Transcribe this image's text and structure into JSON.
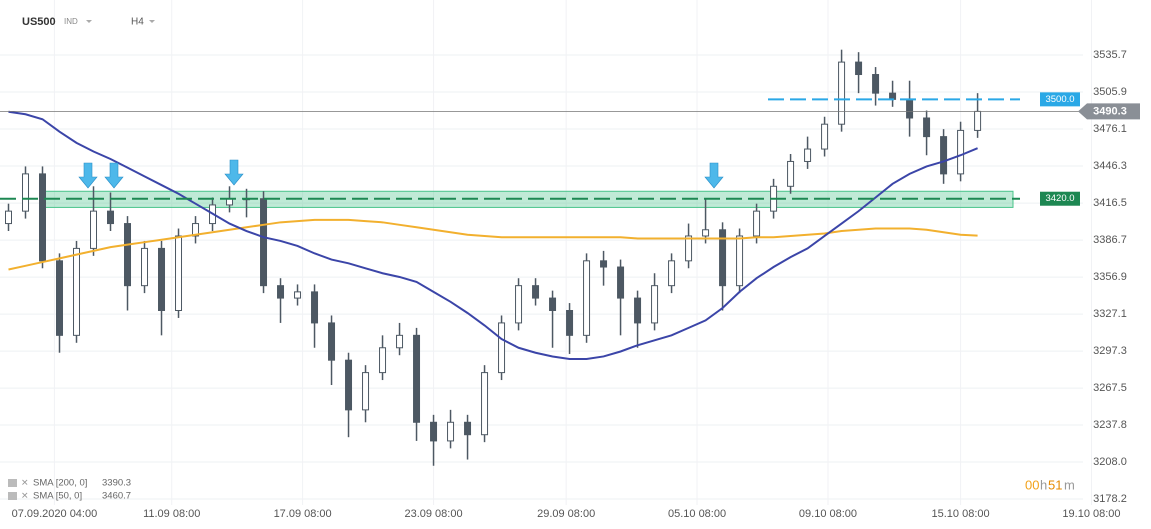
{
  "header": {
    "symbol": "US500",
    "market": "IND",
    "timeframe": "H4"
  },
  "chart_data": {
    "type": "candlestick",
    "candles": [
      [
        3400,
        3416,
        3394,
        3410
      ],
      [
        3410,
        3446,
        3404,
        3440
      ],
      [
        3440,
        3446,
        3364,
        3370
      ],
      [
        3370,
        3376,
        3296,
        3310
      ],
      [
        3310,
        3386,
        3304,
        3380
      ],
      [
        3380,
        3430,
        3374,
        3410
      ],
      [
        3410,
        3425,
        3394,
        3400
      ],
      [
        3400,
        3406,
        3330,
        3350
      ],
      [
        3350,
        3386,
        3344,
        3380
      ],
      [
        3380,
        3386,
        3310,
        3330
      ],
      [
        3330,
        3396,
        3324,
        3390
      ],
      [
        3390,
        3406,
        3384,
        3400
      ],
      [
        3400,
        3421,
        3394,
        3415
      ],
      [
        3415,
        3430,
        3409,
        3420
      ],
      [
        3420,
        3428,
        3405,
        3420
      ],
      [
        3420,
        3426,
        3344,
        3350
      ],
      [
        3350,
        3356,
        3320,
        3340
      ],
      [
        3340,
        3351,
        3334,
        3345
      ],
      [
        3345,
        3351,
        3300,
        3320
      ],
      [
        3320,
        3326,
        3270,
        3290
      ],
      [
        3290,
        3296,
        3228,
        3250
      ],
      [
        3250,
        3286,
        3240,
        3280
      ],
      [
        3280,
        3310,
        3274,
        3300
      ],
      [
        3300,
        3320,
        3294,
        3310
      ],
      [
        3310,
        3316,
        3225,
        3240
      ],
      [
        3240,
        3246,
        3205,
        3225
      ],
      [
        3225,
        3250,
        3219,
        3240
      ],
      [
        3240,
        3246,
        3210,
        3230
      ],
      [
        3230,
        3286,
        3224,
        3280
      ],
      [
        3280,
        3326,
        3274,
        3320
      ],
      [
        3320,
        3356,
        3314,
        3350
      ],
      [
        3350,
        3356,
        3334,
        3340
      ],
      [
        3340,
        3346,
        3300,
        3330
      ],
      [
        3330,
        3336,
        3295,
        3310
      ],
      [
        3310,
        3376,
        3304,
        3370
      ],
      [
        3370,
        3378,
        3350,
        3365
      ],
      [
        3365,
        3371,
        3310,
        3340
      ],
      [
        3340,
        3346,
        3300,
        3320
      ],
      [
        3320,
        3360,
        3314,
        3350
      ],
      [
        3350,
        3376,
        3344,
        3370
      ],
      [
        3370,
        3400,
        3364,
        3390
      ],
      [
        3390,
        3420,
        3384,
        3395
      ],
      [
        3395,
        3401,
        3330,
        3350
      ],
      [
        3350,
        3396,
        3344,
        3390
      ],
      [
        3390,
        3416,
        3384,
        3410
      ],
      [
        3410,
        3436,
        3404,
        3430
      ],
      [
        3430,
        3456,
        3424,
        3450
      ],
      [
        3450,
        3470,
        3444,
        3460
      ],
      [
        3460,
        3486,
        3454,
        3480
      ],
      [
        3480,
        3540,
        3474,
        3530
      ],
      [
        3530,
        3538,
        3505,
        3520
      ],
      [
        3520,
        3526,
        3495,
        3505
      ],
      [
        3505,
        3515,
        3494,
        3500
      ],
      [
        3500,
        3515,
        3470,
        3485
      ],
      [
        3485,
        3491,
        3455,
        3470
      ],
      [
        3470,
        3476,
        3432,
        3440
      ],
      [
        3440,
        3482,
        3434,
        3475
      ],
      [
        3475,
        3505,
        3469,
        3490.3
      ]
    ],
    "bull_color": "#ffffff",
    "bear_color": "#4d5863",
    "series": [
      {
        "name": "SMA [200, 0]",
        "color": "#f2b02e",
        "values": [
          3363,
          3366,
          3369,
          3372,
          3375,
          3378,
          3381,
          3383,
          3385,
          3387,
          3389,
          3391,
          3393,
          3395,
          3397,
          3399,
          3401,
          3402,
          3403,
          3403,
          3403,
          3402,
          3401,
          3399,
          3397,
          3395,
          3393,
          3391,
          3390,
          3389,
          3389,
          3389,
          3389,
          3389,
          3389,
          3389,
          3389,
          3388,
          3388,
          3388,
          3388,
          3388,
          3388,
          3388,
          3389,
          3389,
          3390,
          3391,
          3392,
          3394,
          3395,
          3396,
          3396,
          3396,
          3395,
          3393,
          3391,
          3390.3
        ]
      },
      {
        "name": "SMA [50, 0]",
        "color": "#3b45a8",
        "values": [
          3490,
          3488,
          3484,
          3474,
          3465,
          3458,
          3452,
          3445,
          3438,
          3431,
          3424,
          3416,
          3408,
          3400,
          3394,
          3389,
          3386,
          3382,
          3376,
          3371,
          3368,
          3364,
          3360,
          3357,
          3353,
          3345,
          3337,
          3328,
          3318,
          3307,
          3300,
          3296,
          3293,
          3291,
          3291,
          3293,
          3297,
          3302,
          3306,
          3310,
          3316,
          3322,
          3332,
          3345,
          3356,
          3365,
          3373,
          3380,
          3390,
          3400,
          3410,
          3421,
          3432,
          3440,
          3446,
          3450,
          3455,
          3460.7
        ]
      }
    ],
    "xlim": [
      0,
      67.7
    ],
    "xticks": [
      {
        "value": 3.2,
        "label": "07.09.2020 04:00"
      },
      {
        "value": 10.1,
        "label": "11.09 08:00"
      },
      {
        "value": 17.8,
        "label": "17.09 08:00"
      },
      {
        "value": 25.5,
        "label": "23.09 08:00"
      },
      {
        "value": 33.3,
        "label": "29.09 08:00"
      },
      {
        "value": 41,
        "label": "05.10 08:00"
      },
      {
        "value": 48.7,
        "label": "09.10 08:00"
      },
      {
        "value": 56.5,
        "label": "15.10 08:00"
      },
      {
        "value": 64.2,
        "label": "19.10 08:00"
      }
    ],
    "ylim": [
      3173.4,
      3580
    ],
    "yticks": [
      3535.7,
      3505.9,
      3476.1,
      3446.3,
      3416.5,
      3386.7,
      3356.9,
      3327.1,
      3297.3,
      3267.5,
      3237.8,
      {
        "value": 3208,
        "label": "3208.0"
      },
      3178.2
    ],
    "levels": [
      {
        "value": 3500,
        "label": "3500.0",
        "color": "#2aa8e6"
      },
      {
        "value": 3420,
        "label": "3420.0",
        "color": "#1d8752"
      }
    ],
    "zone": {
      "from": 3413,
      "to": 3426,
      "color": "#49c48a"
    },
    "last_price": 3490.3,
    "grid": true,
    "timer": [
      "00",
      "h",
      "51",
      "m"
    ]
  }
}
